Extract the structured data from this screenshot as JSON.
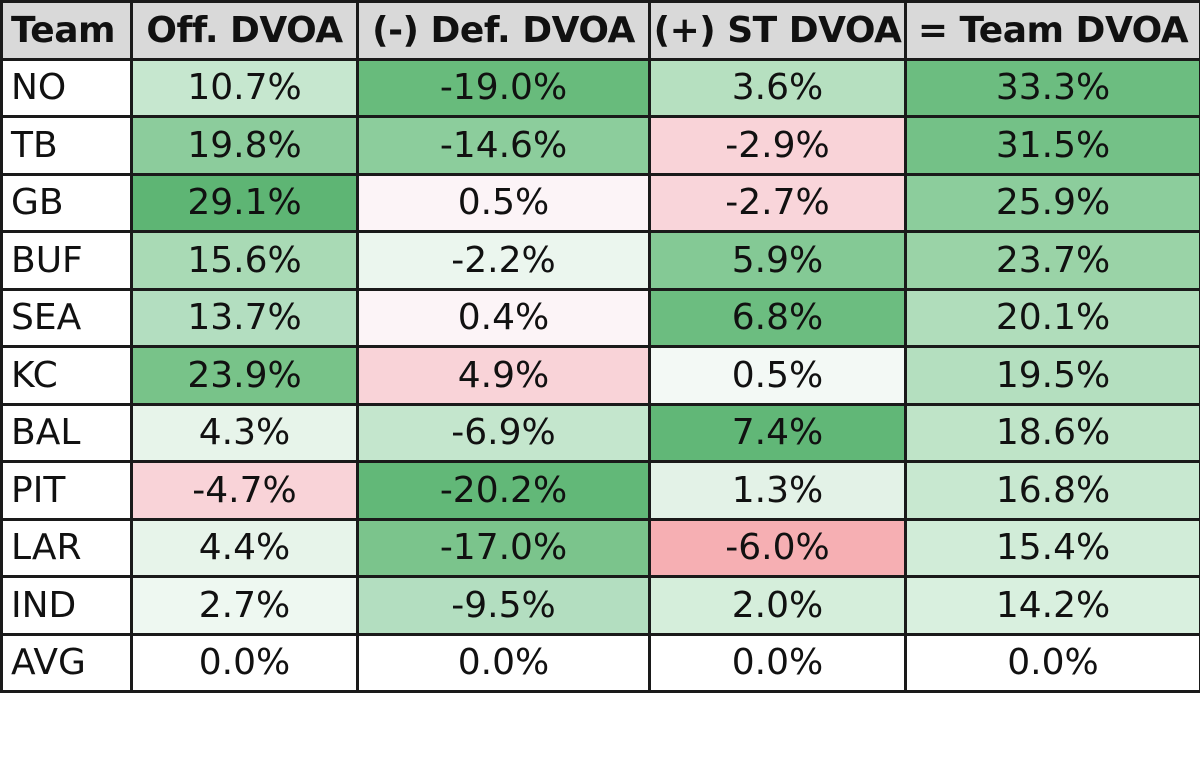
{
  "chart_data": {
    "type": "table",
    "columns": [
      "Team",
      "Off. DVOA",
      "(-) Def. DVOA",
      "(+) ST DVOA",
      "= Team DVOA"
    ],
    "rows": [
      {
        "team": "NO",
        "off": "10.7%",
        "def": "-19.0%",
        "st": "3.6%",
        "total": "33.3%"
      },
      {
        "team": "TB",
        "off": "19.8%",
        "def": "-14.6%",
        "st": "-2.9%",
        "total": "31.5%"
      },
      {
        "team": "GB",
        "off": "29.1%",
        "def": "0.5%",
        "st": "-2.7%",
        "total": "25.9%"
      },
      {
        "team": "BUF",
        "off": "15.6%",
        "def": "-2.2%",
        "st": "5.9%",
        "total": "23.7%"
      },
      {
        "team": "SEA",
        "off": "13.7%",
        "def": "0.4%",
        "st": "6.8%",
        "total": "20.1%"
      },
      {
        "team": "KC",
        "off": "23.9%",
        "def": "4.9%",
        "st": "0.5%",
        "total": "19.5%"
      },
      {
        "team": "BAL",
        "off": "4.3%",
        "def": "-6.9%",
        "st": "7.4%",
        "total": "18.6%"
      },
      {
        "team": "PIT",
        "off": "-4.7%",
        "def": "-20.2%",
        "st": "1.3%",
        "total": "16.8%"
      },
      {
        "team": "LAR",
        "off": "4.4%",
        "def": "-17.0%",
        "st": "-6.0%",
        "total": "15.4%"
      },
      {
        "team": "IND",
        "off": "2.7%",
        "def": "-9.5%",
        "st": "2.0%",
        "total": "14.2%"
      },
      {
        "team": "AVG",
        "off": "0.0%",
        "def": "0.0%",
        "st": "0.0%",
        "total": "0.0%"
      }
    ],
    "cell_colors": [
      [
        "#c6e7cf",
        "#68bb7c",
        "#b6e0c0",
        "#6cbd80"
      ],
      [
        "#8ccc9c",
        "#8ccd9c",
        "#f9d3d8",
        "#74c187"
      ],
      [
        "#5eb574",
        "#fcf4f7",
        "#f9d5da",
        "#8ccd9c"
      ],
      [
        "#a9daB5",
        "#ebf6ee",
        "#84c995",
        "#9ad3a7"
      ],
      [
        "#b3dec0",
        "#fcf4f7",
        "#6cbd80",
        "#b0ddbb"
      ],
      [
        "#78c389",
        "#f9d3d8",
        "#f3f9f5",
        "#b4dfbf"
      ],
      [
        "#e7f4ea",
        "#c4e6cd",
        "#61b777",
        "#bfe4c8"
      ],
      [
        "#f9d3d8",
        "#62b878",
        "#e3f2e7",
        "#c8e8d0"
      ],
      [
        "#e7f4ea",
        "#7bc48c",
        "#f6afb3",
        "#d1ecd8"
      ],
      [
        "#eef8f1",
        "#b3dec0",
        "#d5eedb",
        "#d9f0df"
      ],
      [
        "#ffffff",
        "#ffffff",
        "#ffffff",
        "#ffffff"
      ]
    ],
    "header_color": "#d9d9d9"
  }
}
